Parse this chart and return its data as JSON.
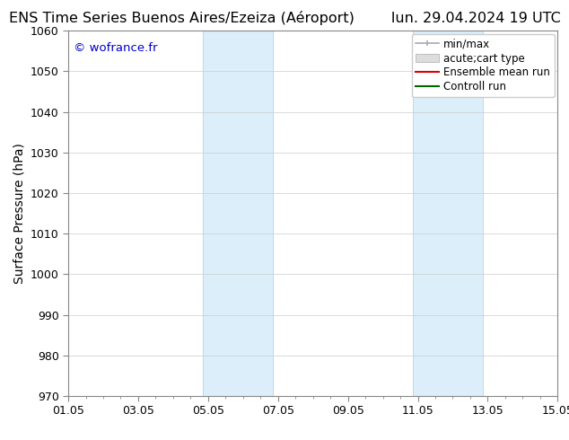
{
  "title_left": "ENS Time Series Buenos Aires/Ezeiza (Aéroport)",
  "title_right": "lun. 29.04.2024 19 UTC",
  "ylabel": "Surface Pressure (hPa)",
  "ylim": [
    970,
    1060
  ],
  "yticks": [
    970,
    980,
    990,
    1000,
    1010,
    1020,
    1030,
    1040,
    1050,
    1060
  ],
  "xtick_labels": [
    "01.05",
    "03.05",
    "05.05",
    "07.05",
    "09.05",
    "11.05",
    "13.05",
    "15.05"
  ],
  "xtick_positions": [
    0,
    2,
    4,
    6,
    8,
    10,
    12,
    14
  ],
  "xlim": [
    0,
    14
  ],
  "shaded_bands": [
    {
      "x_start": 3.85,
      "x_end": 5.85
    },
    {
      "x_start": 9.85,
      "x_end": 11.85
    }
  ],
  "shaded_color": "#dceefa",
  "shaded_edge_color": "#b8d4e8",
  "watermark_text": "© wofrance.fr",
  "watermark_color": "#0000cc",
  "background_color": "#ffffff",
  "legend_items": [
    {
      "label": "min/max",
      "color": "#aaaaaa",
      "style": "errorbar"
    },
    {
      "label": "acute;cart type",
      "color": "#cccccc",
      "style": "fill"
    },
    {
      "label": "Ensemble mean run",
      "color": "#dd0000",
      "style": "line"
    },
    {
      "label": "Controll run",
      "color": "#006600",
      "style": "line"
    }
  ],
  "title_fontsize": 11.5,
  "axis_fontsize": 10,
  "tick_fontsize": 9,
  "legend_fontsize": 8.5,
  "grid_color": "#cccccc",
  "spine_color": "#888888"
}
